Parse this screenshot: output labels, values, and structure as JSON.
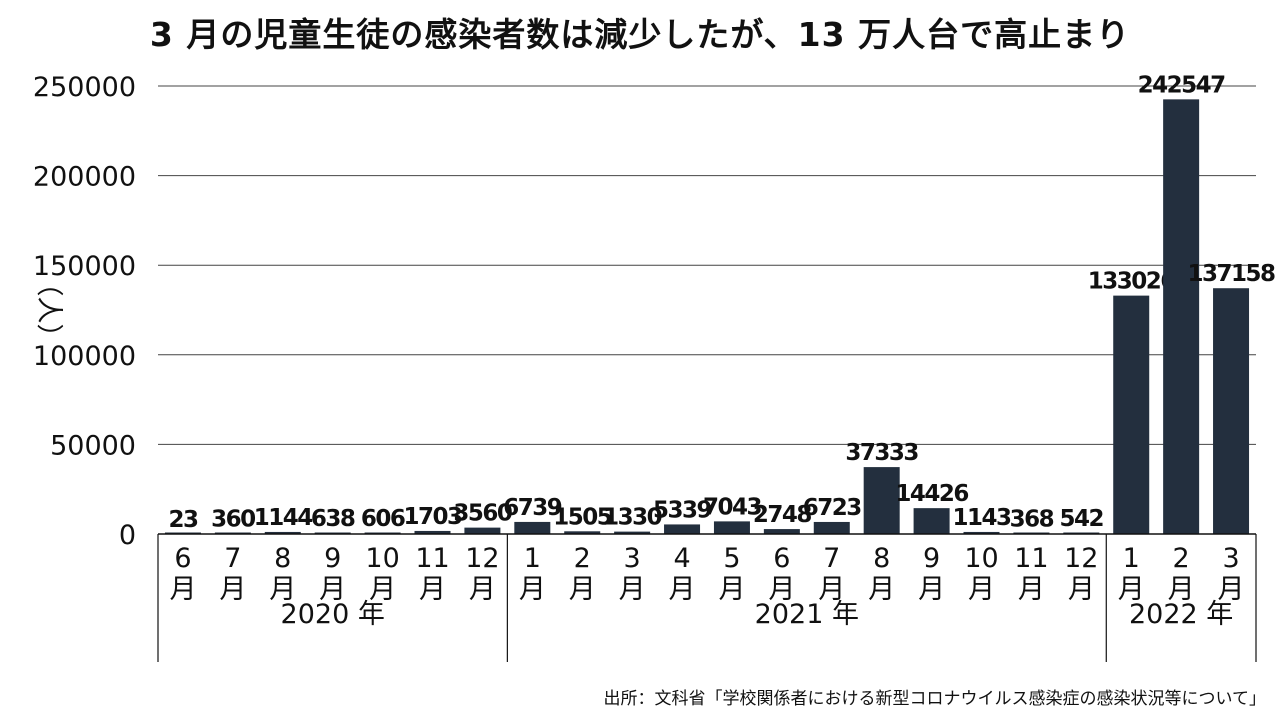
{
  "title": "3 月の児童生徒の感染者数は減少したが、13 万人台で高止まり",
  "source": "出所：文科省「学校関係者における新型コロナウイルス感染症の感染状況等について」",
  "colors": {
    "bar": "#232f3e",
    "grid": "#444444",
    "text": "#111111"
  },
  "chart_data": {
    "type": "bar",
    "title": "3 月の児童生徒の感染者数は減少したが、13 万人台で高止まり",
    "xlabel": "",
    "ylabel": "（人）",
    "ylim": [
      0,
      250000
    ],
    "yticks": [
      0,
      50000,
      100000,
      150000,
      200000,
      250000
    ],
    "grid": true,
    "legend": "none",
    "categories": [
      "6月",
      "7月",
      "8月",
      "9月",
      "10月",
      "11月",
      "12月",
      "1月",
      "2月",
      "3月",
      "4月",
      "5月",
      "6月",
      "7月",
      "8月",
      "9月",
      "10月",
      "11月",
      "12月",
      "1月",
      "2月",
      "3月"
    ],
    "category_labels": [
      [
        "6",
        "月"
      ],
      [
        "7",
        "月"
      ],
      [
        "8",
        "月"
      ],
      [
        "9",
        "月"
      ],
      [
        "10",
        "月"
      ],
      [
        "11",
        "月"
      ],
      [
        "12",
        "月"
      ],
      [
        "1",
        "月"
      ],
      [
        "2",
        "月"
      ],
      [
        "3",
        "月"
      ],
      [
        "4",
        "月"
      ],
      [
        "5",
        "月"
      ],
      [
        "6",
        "月"
      ],
      [
        "7",
        "月"
      ],
      [
        "8",
        "月"
      ],
      [
        "9",
        "月"
      ],
      [
        "10",
        "月"
      ],
      [
        "11",
        "月"
      ],
      [
        "12",
        "月"
      ],
      [
        "1",
        "月"
      ],
      [
        "2",
        "月"
      ],
      [
        "3",
        "月"
      ]
    ],
    "values": [
      23,
      360,
      1144,
      638,
      606,
      1703,
      3560,
      6739,
      1505,
      1330,
      5339,
      7043,
      2748,
      6723,
      37333,
      14426,
      1143,
      368,
      542,
      133026,
      242547,
      137158
    ],
    "groups": [
      {
        "label": "2020 年",
        "start": 0,
        "end": 6
      },
      {
        "label": "2021 年",
        "start": 7,
        "end": 18
      },
      {
        "label": "2022 年",
        "start": 19,
        "end": 21
      }
    ]
  }
}
